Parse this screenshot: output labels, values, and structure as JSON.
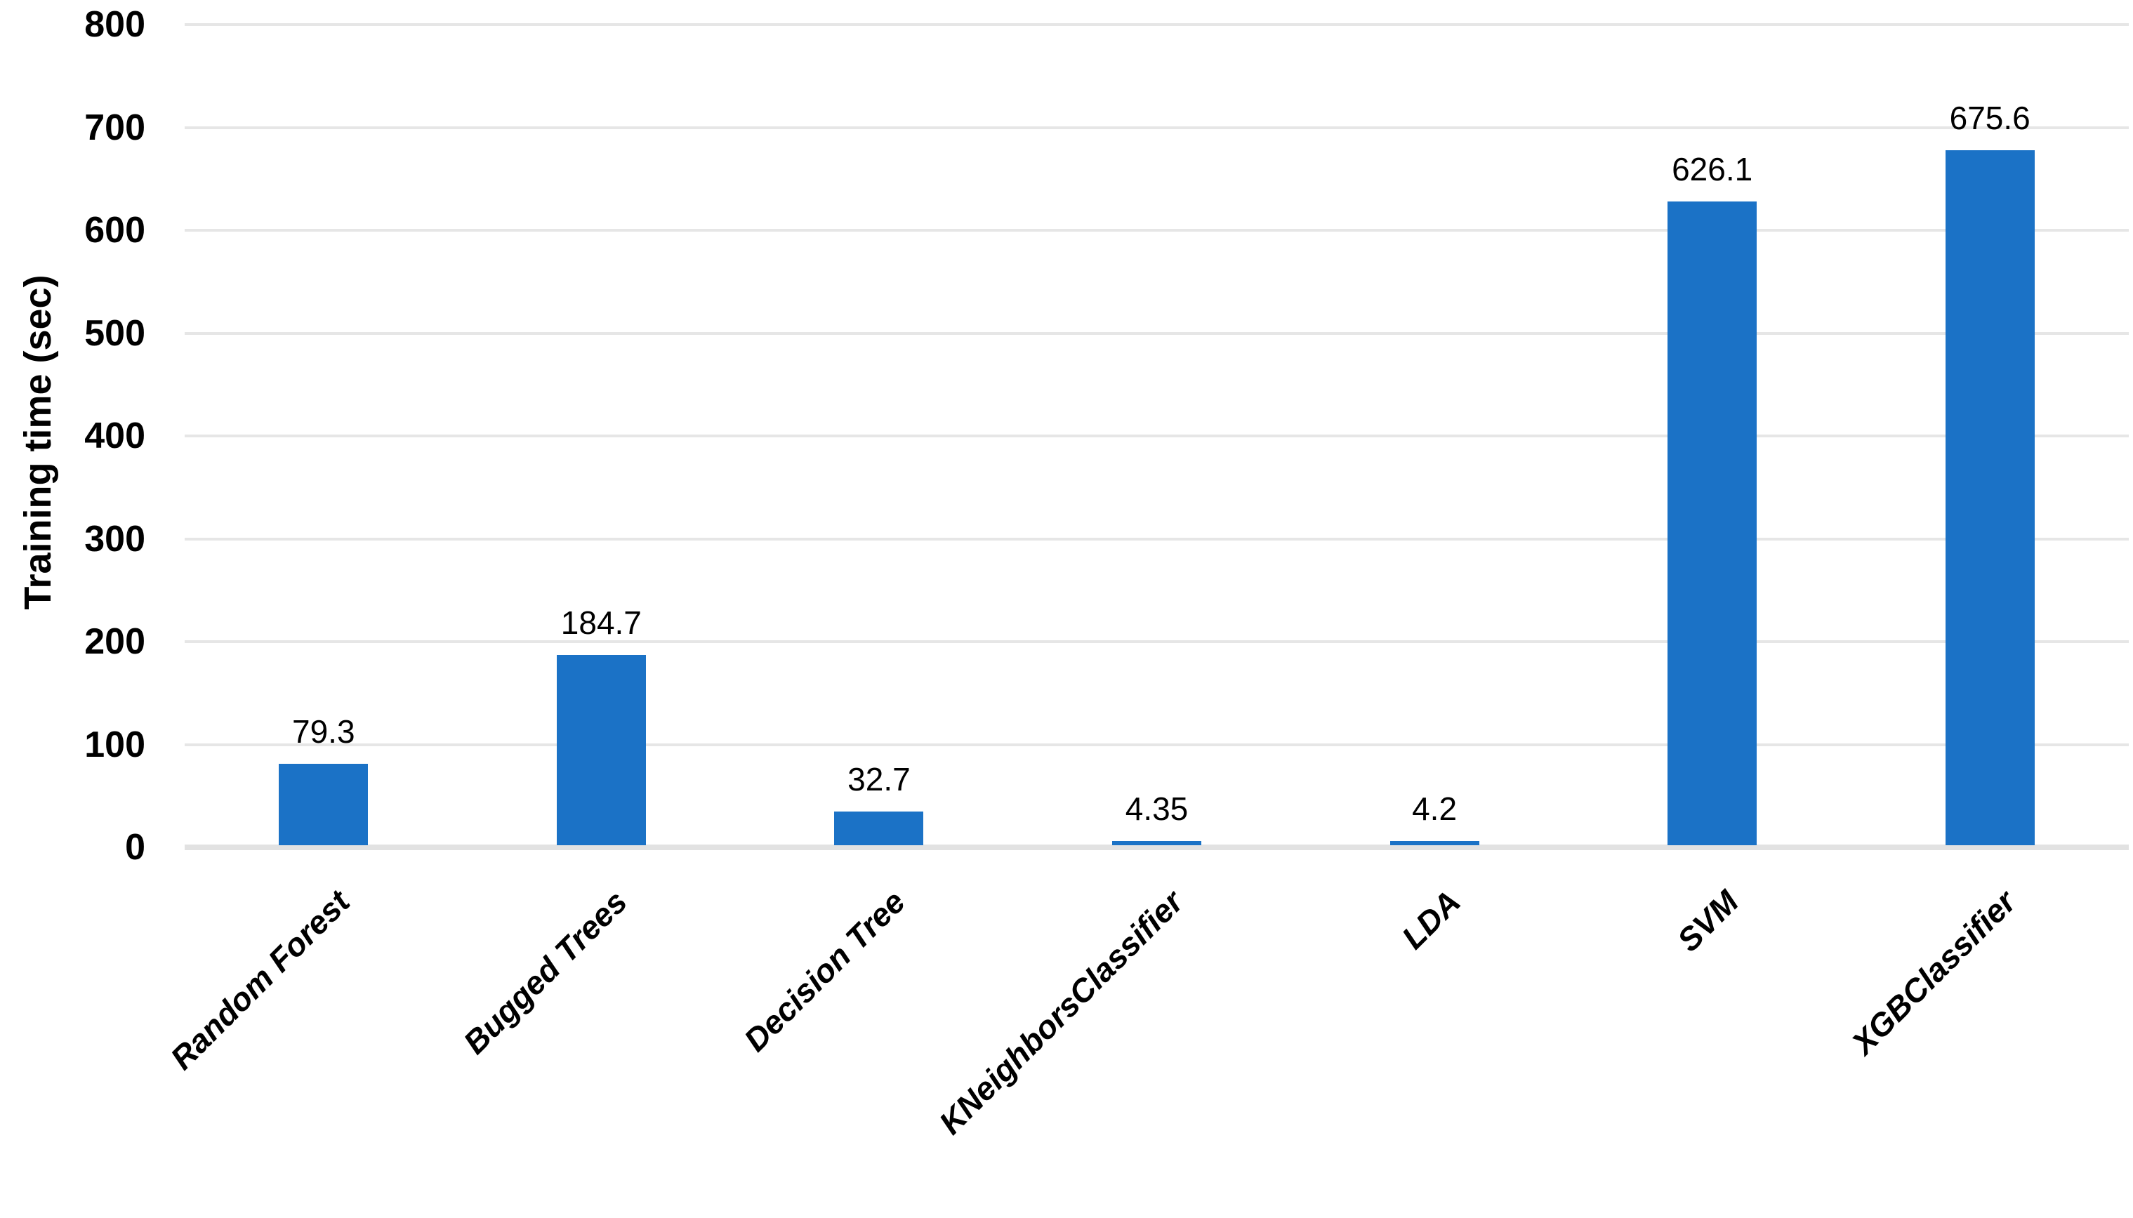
{
  "chart_data": {
    "type": "bar",
    "title": "",
    "xlabel": "",
    "ylabel": "Training time (sec)",
    "categories": [
      "Random Forest",
      "Bugged Trees",
      "Decision Tree",
      "KNeighborsClassifier",
      "LDA",
      "SVM",
      "XGBClassifier"
    ],
    "values": [
      79.3,
      184.7,
      32.7,
      4.35,
      4.2,
      626.1,
      675.6
    ],
    "value_labels": [
      "79.3",
      "184.7",
      "32.7",
      "4.35",
      "4.2",
      "626.1",
      "675.6"
    ],
    "ylim": [
      0,
      800
    ],
    "yticks": [
      0,
      100,
      200,
      300,
      400,
      500,
      600,
      700,
      800
    ],
    "grid": "horizontal",
    "legend": "none",
    "colors": {
      "bar": "#1b72c6",
      "gridline": "#e6e6e6",
      "axis_baseline": "#e2e2e2",
      "text": "#000000",
      "background": "#ffffff"
    }
  }
}
